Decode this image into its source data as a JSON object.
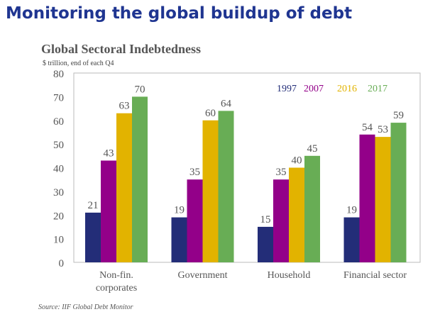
{
  "page_title": "Monitoring the global buildup of debt",
  "chart_data": {
    "type": "bar",
    "title": "Global Sectoral Indebtedness",
    "subtitle": "$ trillion, end of each Q4",
    "categories": [
      "Non-fin. corporates",
      "Government",
      "Household",
      "Financial sector"
    ],
    "category_lines": [
      [
        "Non-fin.",
        "corporates"
      ],
      [
        "Government"
      ],
      [
        "Household"
      ],
      [
        "Financial sector"
      ]
    ],
    "series": [
      {
        "name": "1997",
        "values": [
          21,
          19,
          15,
          19
        ],
        "color": "#232d78"
      },
      {
        "name": "2007",
        "values": [
          43,
          35,
          35,
          54
        ],
        "color": "#930089"
      },
      {
        "name": "2016",
        "values": [
          63,
          60,
          40,
          53
        ],
        "color": "#e2b300"
      },
      {
        "name": "2017",
        "values": [
          70,
          64,
          45,
          59
        ],
        "color": "#68ad55"
      }
    ],
    "ylim": [
      0,
      80
    ],
    "yticks": [
      "0",
      "10",
      "20",
      "30",
      "40",
      "50",
      "60",
      "70",
      "80"
    ],
    "legend_placement": "top-right",
    "grid": false,
    "source": "Source: IIF Global Debt Monitor"
  },
  "colors": {
    "title": "#1f3591",
    "text": "#555555"
  }
}
